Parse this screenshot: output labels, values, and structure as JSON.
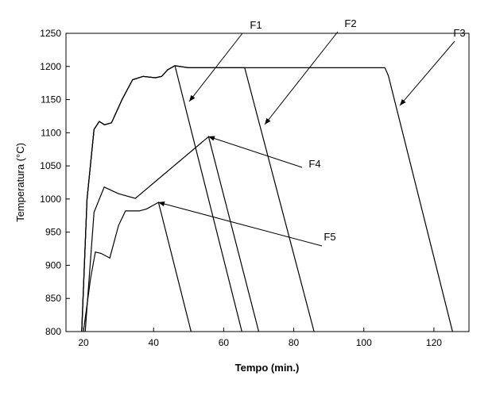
{
  "chart_data": {
    "type": "line",
    "xlabel": "Tempo (min.)",
    "ylabel": "Temperatura (°C)",
    "xlim": [
      15,
      130
    ],
    "xticks": [
      20,
      40,
      60,
      80,
      100,
      120
    ],
    "ylim": [
      800,
      1250
    ],
    "yticks": [
      800,
      850,
      900,
      950,
      1000,
      1050,
      1100,
      1150,
      1200,
      1250
    ],
    "series": [
      {
        "name": "F1",
        "color": "#000000",
        "x": [
          19.5,
          21,
          23,
          24.5,
          26,
          28,
          31,
          34,
          37,
          40.5,
          42.3,
          44,
          46.1,
          65.2
        ],
        "values": [
          800,
          1000,
          1105,
          1117,
          1112,
          1115,
          1150,
          1180,
          1185,
          1183,
          1185,
          1195,
          1201,
          800
        ]
      },
      {
        "name": "F2",
        "color": "#000000",
        "x": [
          19.5,
          21,
          23,
          24.5,
          26,
          28,
          31,
          34,
          37,
          40.5,
          42.3,
          44,
          46.1,
          50,
          66,
          85.8
        ],
        "values": [
          800,
          1000,
          1105,
          1117,
          1112,
          1115,
          1150,
          1180,
          1185,
          1183,
          1185,
          1195,
          1201,
          1198,
          1198,
          800
        ]
      },
      {
        "name": "F3",
        "color": "#000000",
        "x": [
          19.5,
          21,
          23,
          24.5,
          26,
          28,
          31,
          34,
          37,
          40.5,
          42.3,
          44,
          46.1,
          50,
          106,
          107,
          125.3
        ],
        "values": [
          800,
          1000,
          1105,
          1117,
          1112,
          1115,
          1150,
          1180,
          1185,
          1183,
          1185,
          1195,
          1201,
          1198,
          1198,
          1186,
          800
        ]
      },
      {
        "name": "F4",
        "color": "#000000",
        "x": [
          20.5,
          23,
          25.9,
          30,
          34.8,
          55.7,
          70
        ],
        "values": [
          800,
          980,
          1018,
          1008,
          1001,
          1094,
          800
        ]
      },
      {
        "name": "F5",
        "color": "#000000",
        "x": [
          20,
          22,
          23.4,
          25,
          27.5,
          30,
          32,
          35.9,
          38,
          41.4,
          50.7
        ],
        "values": [
          800,
          880,
          920,
          918,
          911,
          960,
          982,
          982,
          985,
          995,
          800
        ]
      }
    ]
  }
}
